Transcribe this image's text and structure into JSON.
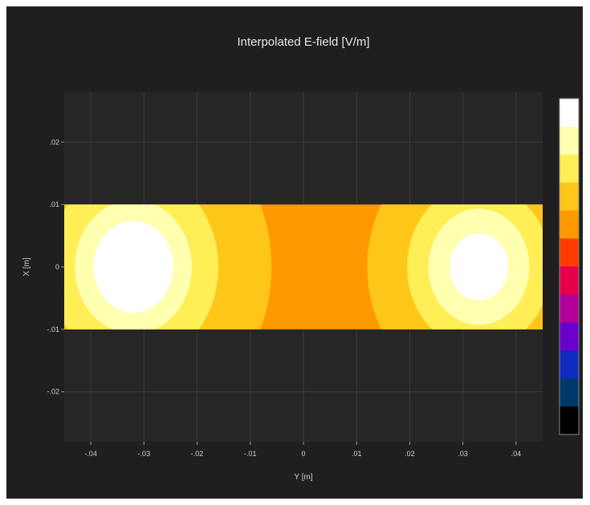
{
  "chart_data": {
    "type": "heatmap",
    "title": "Interpolated E-field [V/m]",
    "xlabel": "Y [m]",
    "ylabel": "X [m]",
    "xlim": [
      -0.045,
      0.045
    ],
    "ylim": [
      -0.028,
      0.028
    ],
    "x_ticks": [
      -0.04,
      -0.03,
      -0.02,
      -0.01,
      0,
      0.01,
      0.02,
      0.03,
      0.04
    ],
    "y_ticks": [
      -0.02,
      -0.01,
      0,
      0.01,
      0.02
    ],
    "grid": true,
    "legend": "colorbar right",
    "region": {
      "x": [
        -0.045,
        0.045
      ],
      "y": [
        -0.01,
        0.01
      ]
    },
    "background_level_color": "#ff9900",
    "field_features": [
      {
        "center": [
          -0.032,
          0.0
        ],
        "radii": [
          0.0075,
          0.011,
          0.016,
          0.026
        ],
        "colors": [
          "#ffffff",
          "#ffffb0",
          "#ffee55",
          "#ffc61a"
        ]
      },
      {
        "center": [
          0.033,
          0.0
        ],
        "radii": [
          0.0055,
          0.0095,
          0.0135,
          0.021
        ],
        "colors": [
          "#ffffff",
          "#ffffb0",
          "#ffee55",
          "#ffc61a"
        ]
      }
    ],
    "colorbar": [
      "#ffffff",
      "#ffffb0",
      "#ffee55",
      "#ffc61a",
      "#ff9900",
      "#ff3d00",
      "#e6004c",
      "#b00099",
      "#6a00cc",
      "#0f2bbf",
      "#003a6b",
      "#000000"
    ]
  }
}
